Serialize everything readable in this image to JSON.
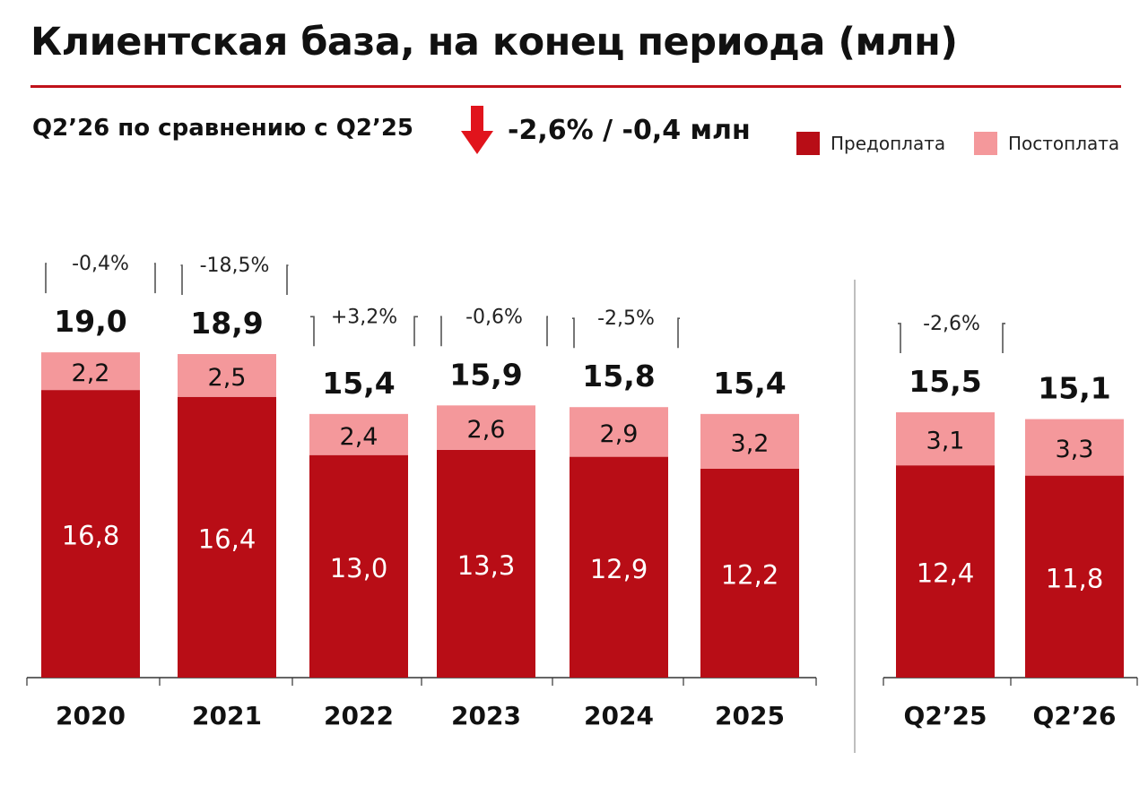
{
  "header": {
    "title": "Клиентская база, на конец периода (млн)",
    "comparison_label": "Q2’26 по сравнению с Q2’25",
    "comparison_value": "-2,6% / -0,4 млн",
    "trend_icon": "down-arrow-icon"
  },
  "legend": {
    "prepaid": "Предоплата",
    "postpaid": "Постоплата"
  },
  "colors": {
    "prepaid": "#b80d16",
    "postpaid": "#f4989b",
    "accent": "#c0111a",
    "arrow": "#e1141c"
  },
  "chart_data": {
    "type": "bar",
    "stacked": true,
    "unit": "млн",
    "categories": [
      "2020",
      "2021",
      "2022",
      "2023",
      "2024",
      "2025",
      "Q2’25",
      "Q2’26"
    ],
    "groups": [
      {
        "categories": [
          "2020",
          "2021",
          "2022",
          "2023",
          "2024",
          "2025"
        ]
      },
      {
        "categories": [
          "Q2’25",
          "Q2’26"
        ]
      }
    ],
    "series": [
      {
        "name": "Предоплата",
        "values": [
          16.8,
          16.4,
          13.0,
          13.3,
          12.9,
          12.2,
          12.4,
          11.8
        ],
        "labels": [
          "16,8",
          "16,4",
          "13,0",
          "13,3",
          "12,9",
          "12,2",
          "12,4",
          "11,8"
        ]
      },
      {
        "name": "Постоплата",
        "values": [
          2.2,
          2.5,
          2.4,
          2.6,
          2.9,
          3.2,
          3.1,
          3.3
        ],
        "labels": [
          "2,2",
          "2,5",
          "2,4",
          "2,6",
          "2,9",
          "3,2",
          "3,1",
          "3,3"
        ]
      }
    ],
    "totals": [
      19.0,
      18.9,
      15.4,
      15.9,
      15.8,
      15.4,
      15.5,
      15.1
    ],
    "total_labels": [
      "19,0",
      "18,9",
      "15,4",
      "15,9",
      "15,8",
      "15,4",
      "15,5",
      "15,1"
    ],
    "changes": [
      {
        "from": "2020",
        "to": "2021",
        "label": "-0,4%"
      },
      {
        "from": "2021",
        "to": "2022",
        "label": "-18,5%"
      },
      {
        "from": "2022",
        "to": "2023",
        "label": "+3,2%"
      },
      {
        "from": "2023",
        "to": "2024",
        "label": "-0,6%"
      },
      {
        "from": "2024",
        "to": "2025",
        "label": "-2,5%"
      },
      {
        "from": "Q2’25",
        "to": "Q2’26",
        "label": "-2,6%"
      }
    ]
  }
}
